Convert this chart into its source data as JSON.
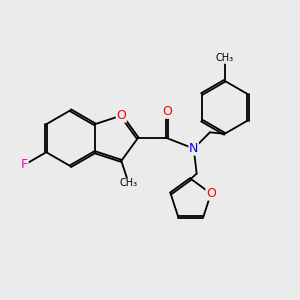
{
  "bg_color": "#ebebeb",
  "bond_color": "#000000",
  "atom_colors": {
    "F": "#ff00cc",
    "O": "#ff0000",
    "N": "#0000ff",
    "C": "#000000"
  },
  "lw": 1.3,
  "dbo": 0.035
}
